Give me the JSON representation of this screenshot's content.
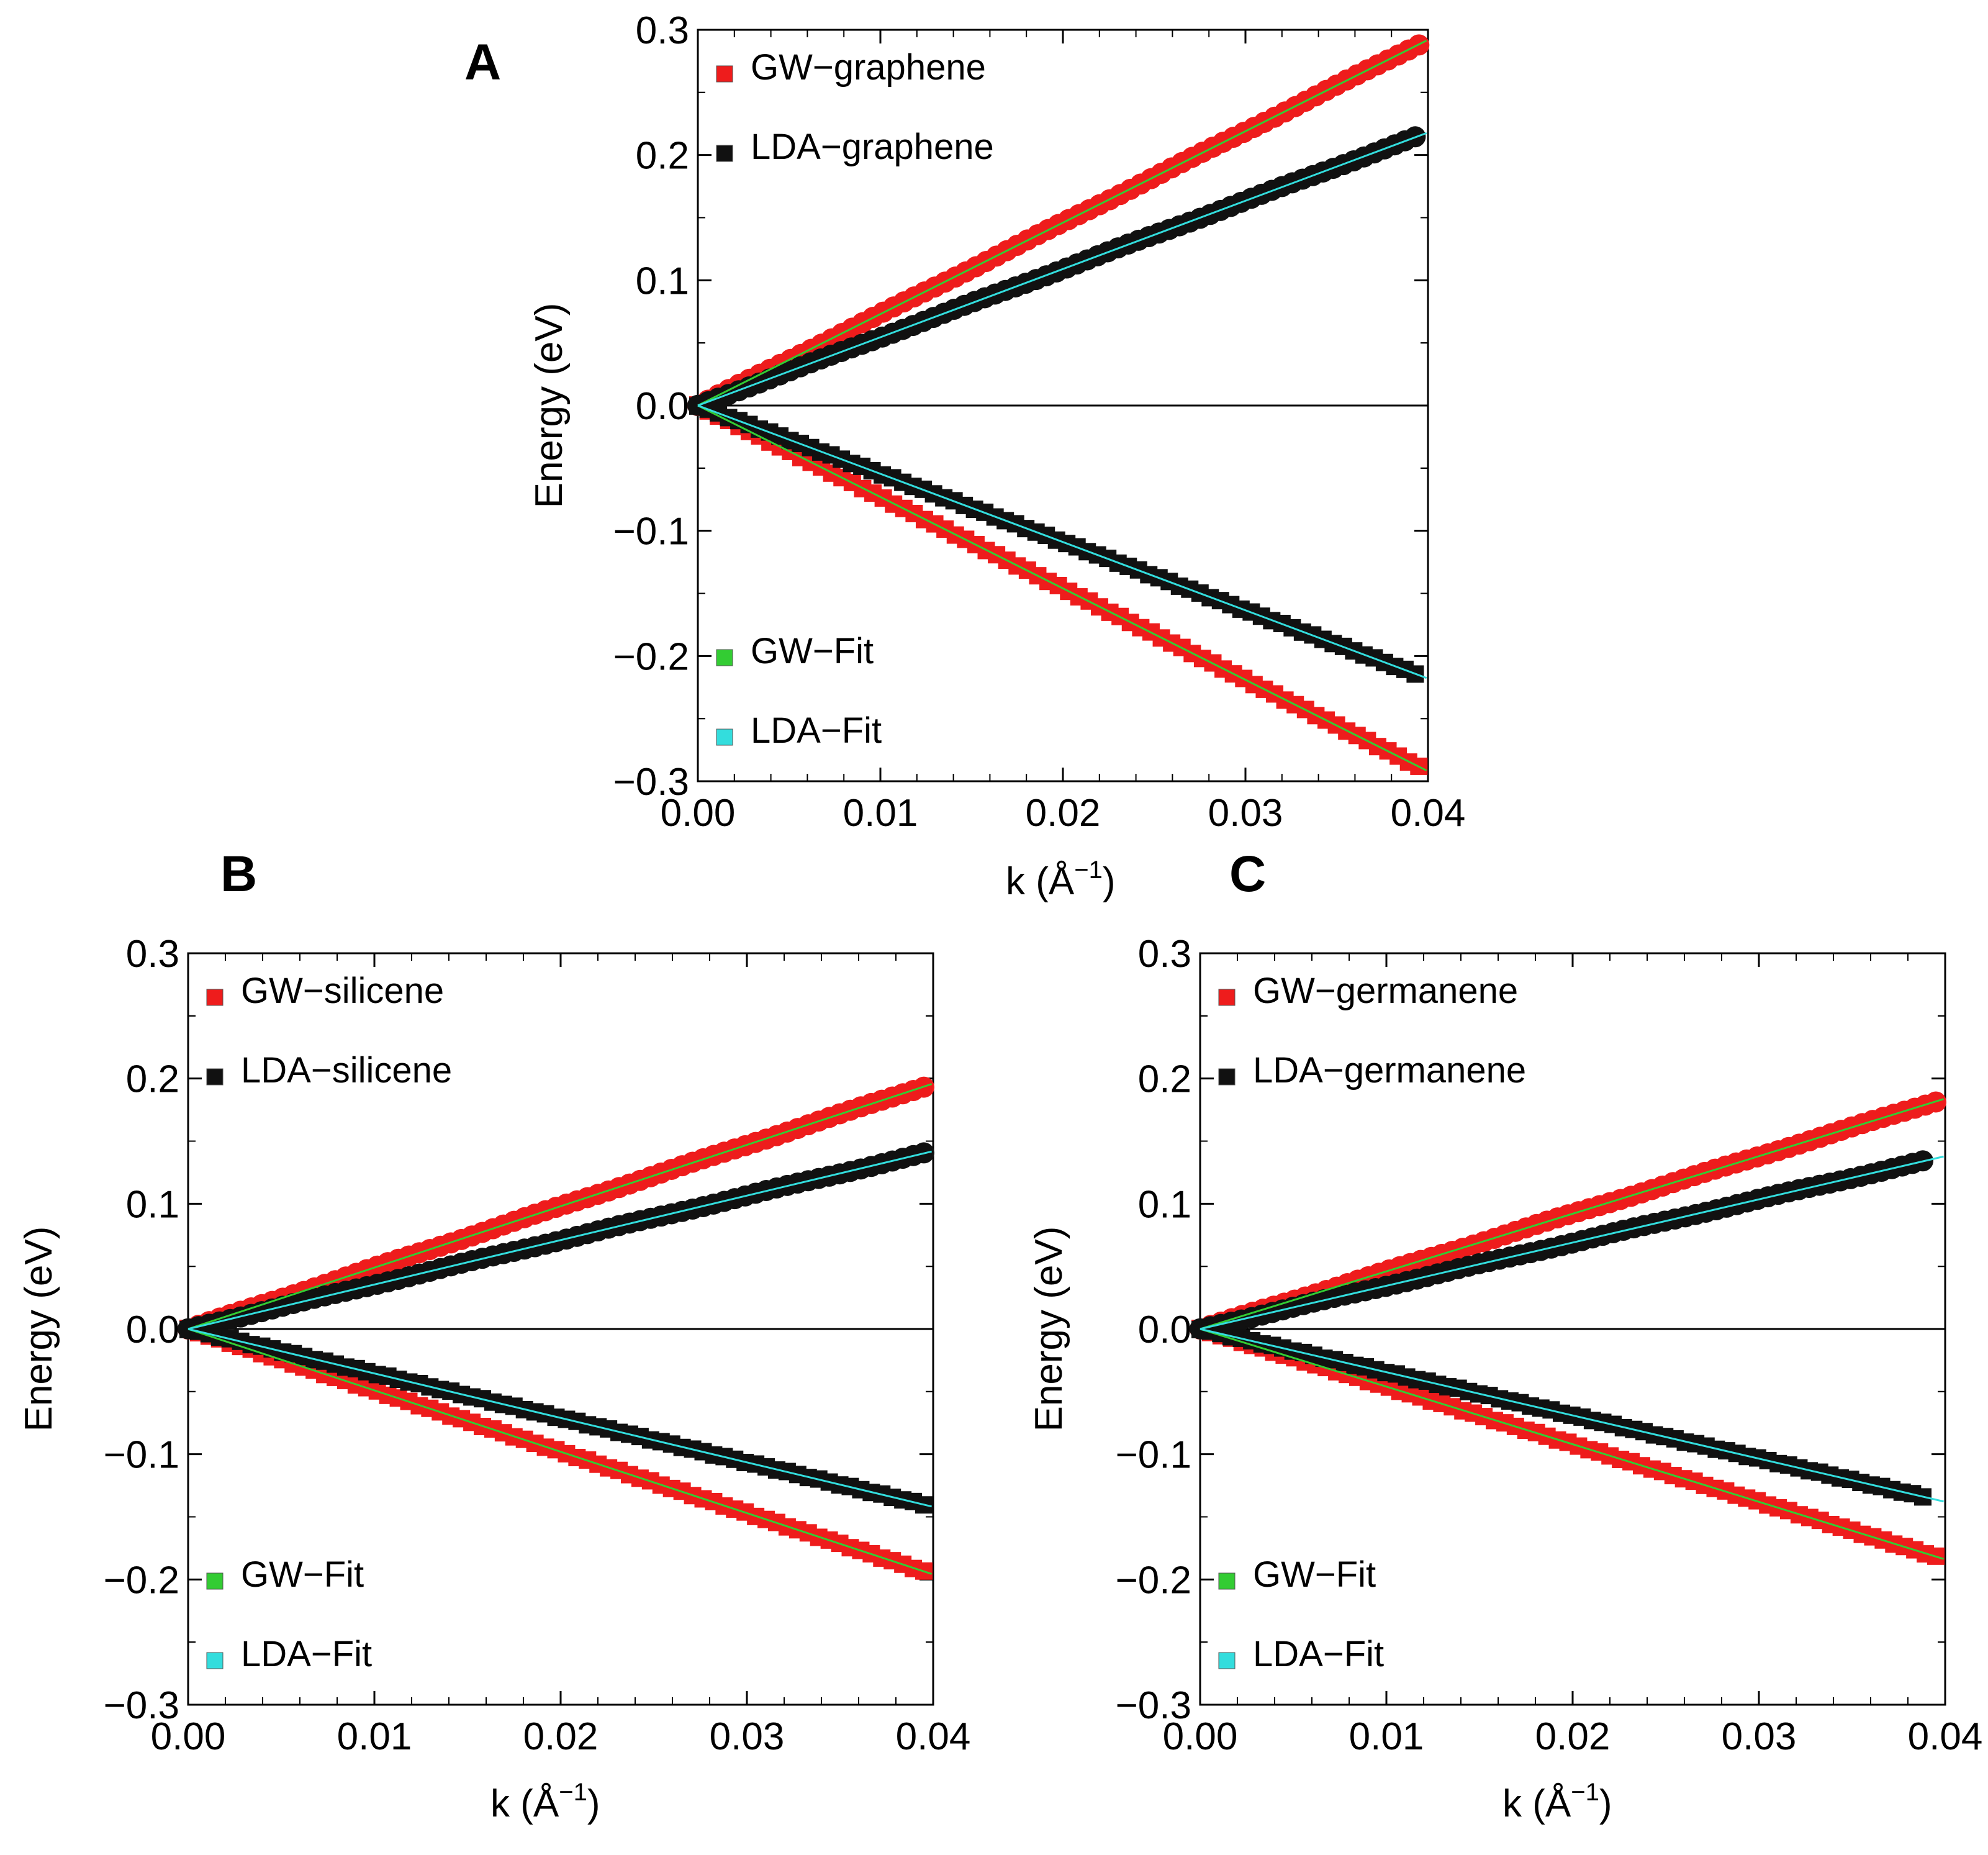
{
  "figure": {
    "description_free": true
  },
  "chart_data": [
    {
      "id": "A",
      "type": "scatter",
      "panel_label": "A",
      "xlabel": "k (Å",
      "xlabel_sup": "−1",
      "xlabel_close": ")",
      "ylabel": "Energy (eV)",
      "xlim": [
        0,
        0.04
      ],
      "ylim": [
        -0.3,
        0.3
      ],
      "xticks": [
        0,
        0.01,
        0.02,
        0.03,
        0.04
      ],
      "xtick_labels": [
        "0.00",
        "0.01",
        "0.02",
        "0.03",
        "0.04"
      ],
      "yticks": [
        -0.3,
        -0.2,
        -0.1,
        0.0,
        0.1,
        0.2,
        0.3
      ],
      "ytick_labels": [
        "−0.3",
        "−0.2",
        "−0.1",
        "0.0",
        "0.1",
        "0.2",
        "0.3"
      ],
      "legend_top": [
        "GW−graphene",
        "LDA−graphene"
      ],
      "legend_bottom": [
        "GW−Fit",
        "LDA−Fit"
      ],
      "series": [
        {
          "name": "GW-graphene",
          "color": "#ee1c1c",
          "slope": 7.3,
          "x_max": 0.0395
        },
        {
          "name": "LDA-graphene",
          "color": "#111111",
          "slope": 5.45,
          "x_max": 0.0393
        }
      ],
      "fits": [
        {
          "name": "GW-Fit",
          "color": "#33cc33",
          "slope": 7.3
        },
        {
          "name": "LDA-Fit",
          "color": "#33dddd",
          "slope": 5.45
        }
      ]
    },
    {
      "id": "B",
      "type": "scatter",
      "panel_label": "B",
      "xlabel": "k (Å",
      "xlabel_sup": "−1",
      "xlabel_close": ")",
      "ylabel": "Energy (eV)",
      "xlim": [
        0,
        0.04
      ],
      "ylim": [
        -0.3,
        0.3
      ],
      "xticks": [
        0,
        0.01,
        0.02,
        0.03,
        0.04
      ],
      "xtick_labels": [
        "0.00",
        "0.01",
        "0.02",
        "0.03",
        "0.04"
      ],
      "yticks": [
        -0.3,
        -0.2,
        -0.1,
        0.0,
        0.1,
        0.2,
        0.3
      ],
      "ytick_labels": [
        "−0.3",
        "−0.2",
        "−0.1",
        "0.0",
        "0.1",
        "0.2",
        "0.3"
      ],
      "legend_top": [
        "GW−silicene",
        "LDA−silicene"
      ],
      "legend_bottom": [
        "GW−Fit",
        "LDA−Fit"
      ],
      "series": [
        {
          "name": "GW-silicene",
          "color": "#ee1c1c",
          "slope": 4.9,
          "x_max": 0.0395
        },
        {
          "name": "LDA-silicene",
          "color": "#111111",
          "slope": 3.55,
          "x_max": 0.0395
        }
      ],
      "fits": [
        {
          "name": "GW-Fit",
          "color": "#33cc33",
          "slope": 4.9
        },
        {
          "name": "LDA-Fit",
          "color": "#33dddd",
          "slope": 3.55
        }
      ]
    },
    {
      "id": "C",
      "type": "scatter",
      "panel_label": "C",
      "xlabel": "k (Å",
      "xlabel_sup": "−1",
      "xlabel_close": ")",
      "ylabel": "Energy (eV)",
      "xlim": [
        0,
        0.04
      ],
      "ylim": [
        -0.3,
        0.3
      ],
      "xticks": [
        0,
        0.01,
        0.02,
        0.03,
        0.04
      ],
      "xtick_labels": [
        "0.00",
        "0.01",
        "0.02",
        "0.03",
        "0.04"
      ],
      "yticks": [
        -0.3,
        -0.2,
        -0.1,
        0.0,
        0.1,
        0.2,
        0.3
      ],
      "ytick_labels": [
        "−0.3",
        "−0.2",
        "−0.1",
        "0.0",
        "0.1",
        "0.2",
        "0.3"
      ],
      "legend_top": [
        "GW−germanene",
        "LDA−germanene"
      ],
      "legend_bottom": [
        "GW−Fit",
        "LDA−Fit"
      ],
      "series": [
        {
          "name": "GW-germanene",
          "color": "#ee1c1c",
          "slope": 4.6,
          "x_max": 0.0395
        },
        {
          "name": "LDA-germanene",
          "color": "#111111",
          "slope": 3.45,
          "x_max": 0.0388
        }
      ],
      "fits": [
        {
          "name": "GW-Fit",
          "color": "#33cc33",
          "slope": 4.6
        },
        {
          "name": "LDA-Fit",
          "color": "#33dddd",
          "slope": 3.45
        }
      ]
    }
  ]
}
